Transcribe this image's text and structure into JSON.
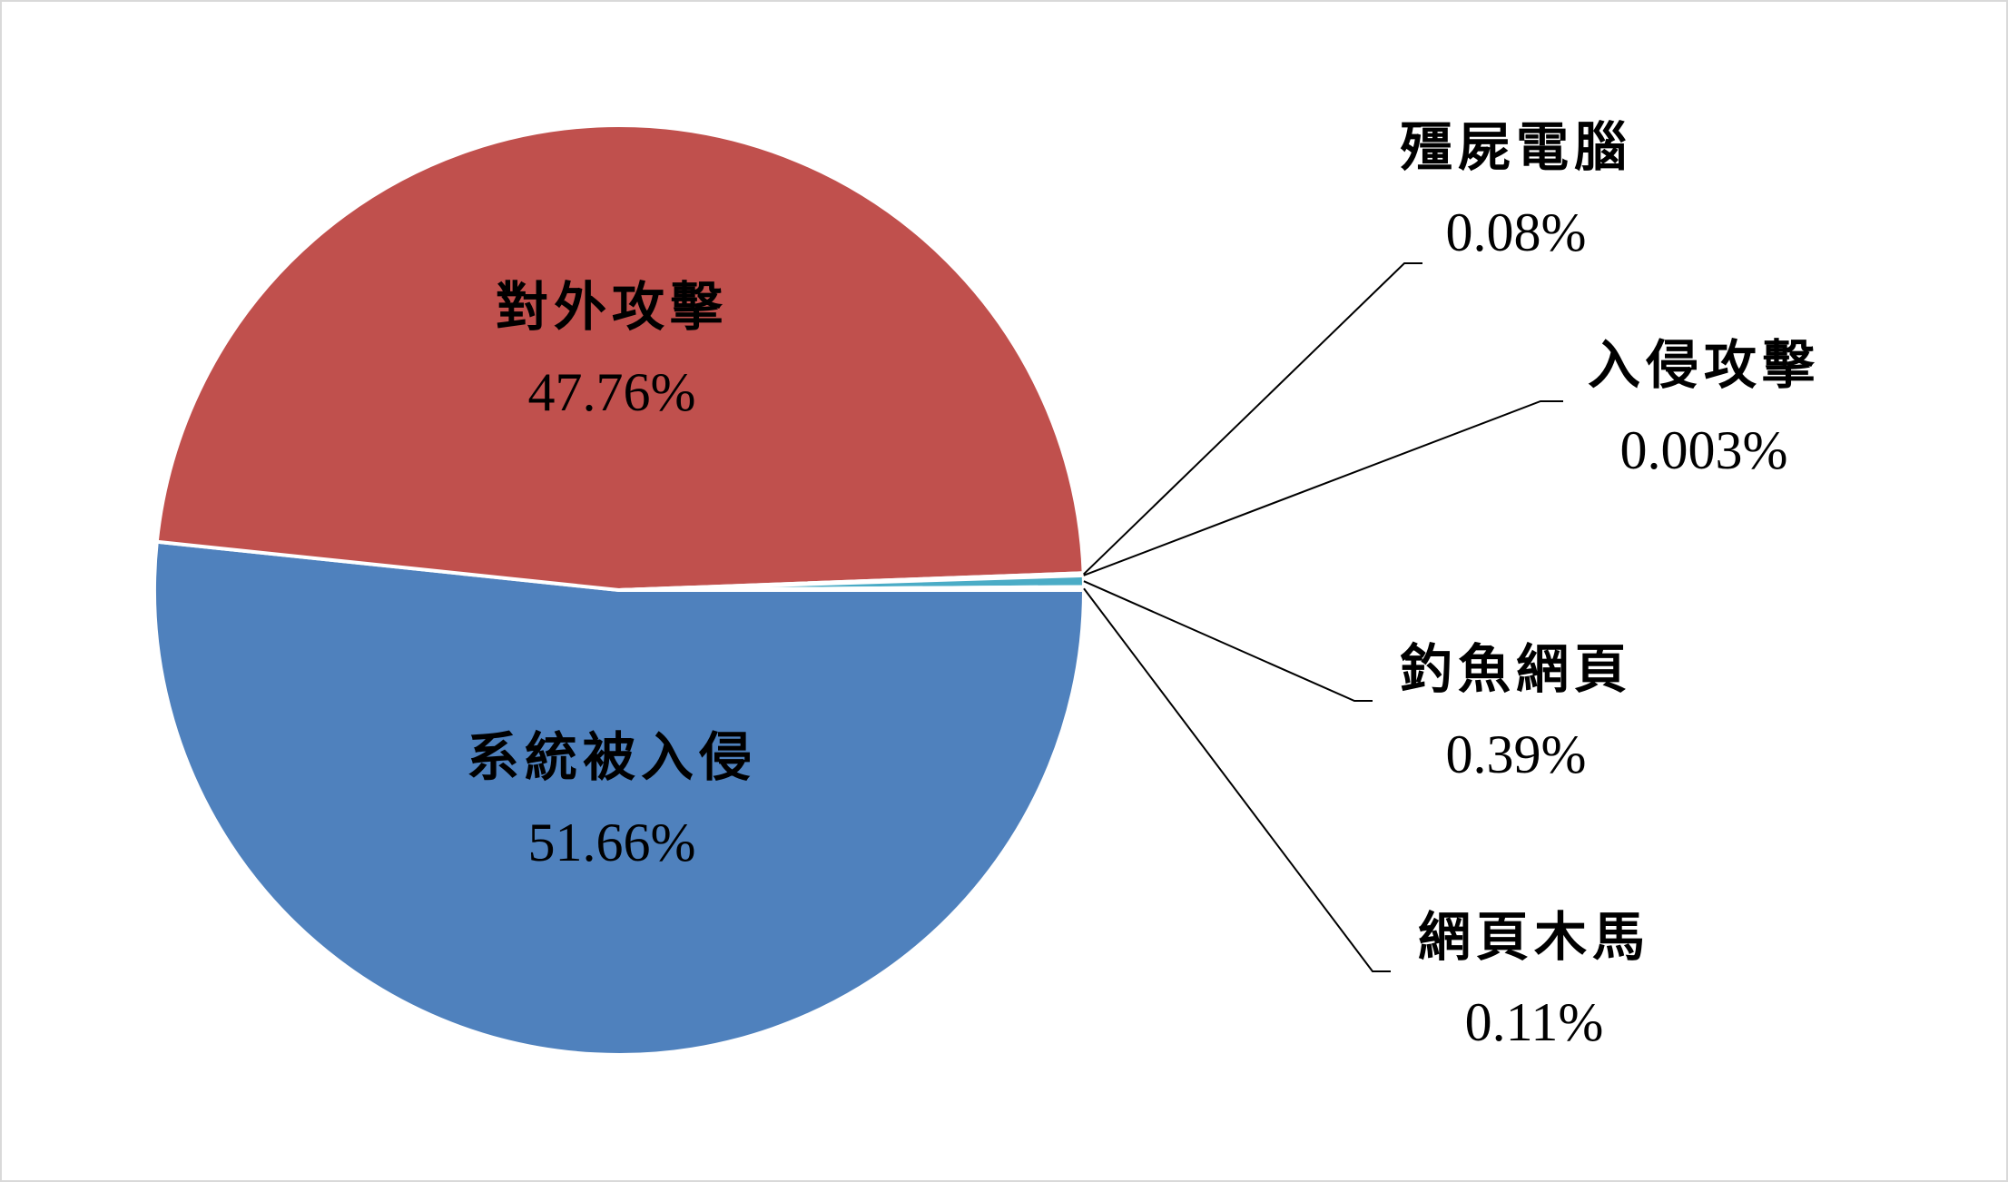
{
  "chart_data": {
    "type": "pie",
    "slices": [
      {
        "name": "系統被入侵",
        "value": 51.66,
        "label": "51.66%",
        "color": "#4f81bd"
      },
      {
        "name": "對外攻擊",
        "value": 47.76,
        "label": "47.76%",
        "color": "#c0504d"
      },
      {
        "name": "殭屍電腦",
        "value": 0.08,
        "label": "0.08%",
        "color": "#9bbb59"
      },
      {
        "name": "入侵攻擊",
        "value": 0.003,
        "label": "0.003%",
        "color": "#8064a2"
      },
      {
        "name": "釣魚網頁",
        "value": 0.39,
        "label": "0.39%",
        "color": "#4bacc6"
      },
      {
        "name": "網頁木馬",
        "value": 0.11,
        "label": "0.11%",
        "color": "#f79646"
      }
    ],
    "title": "",
    "legend": "none",
    "data_labels": "category name and percentage"
  }
}
